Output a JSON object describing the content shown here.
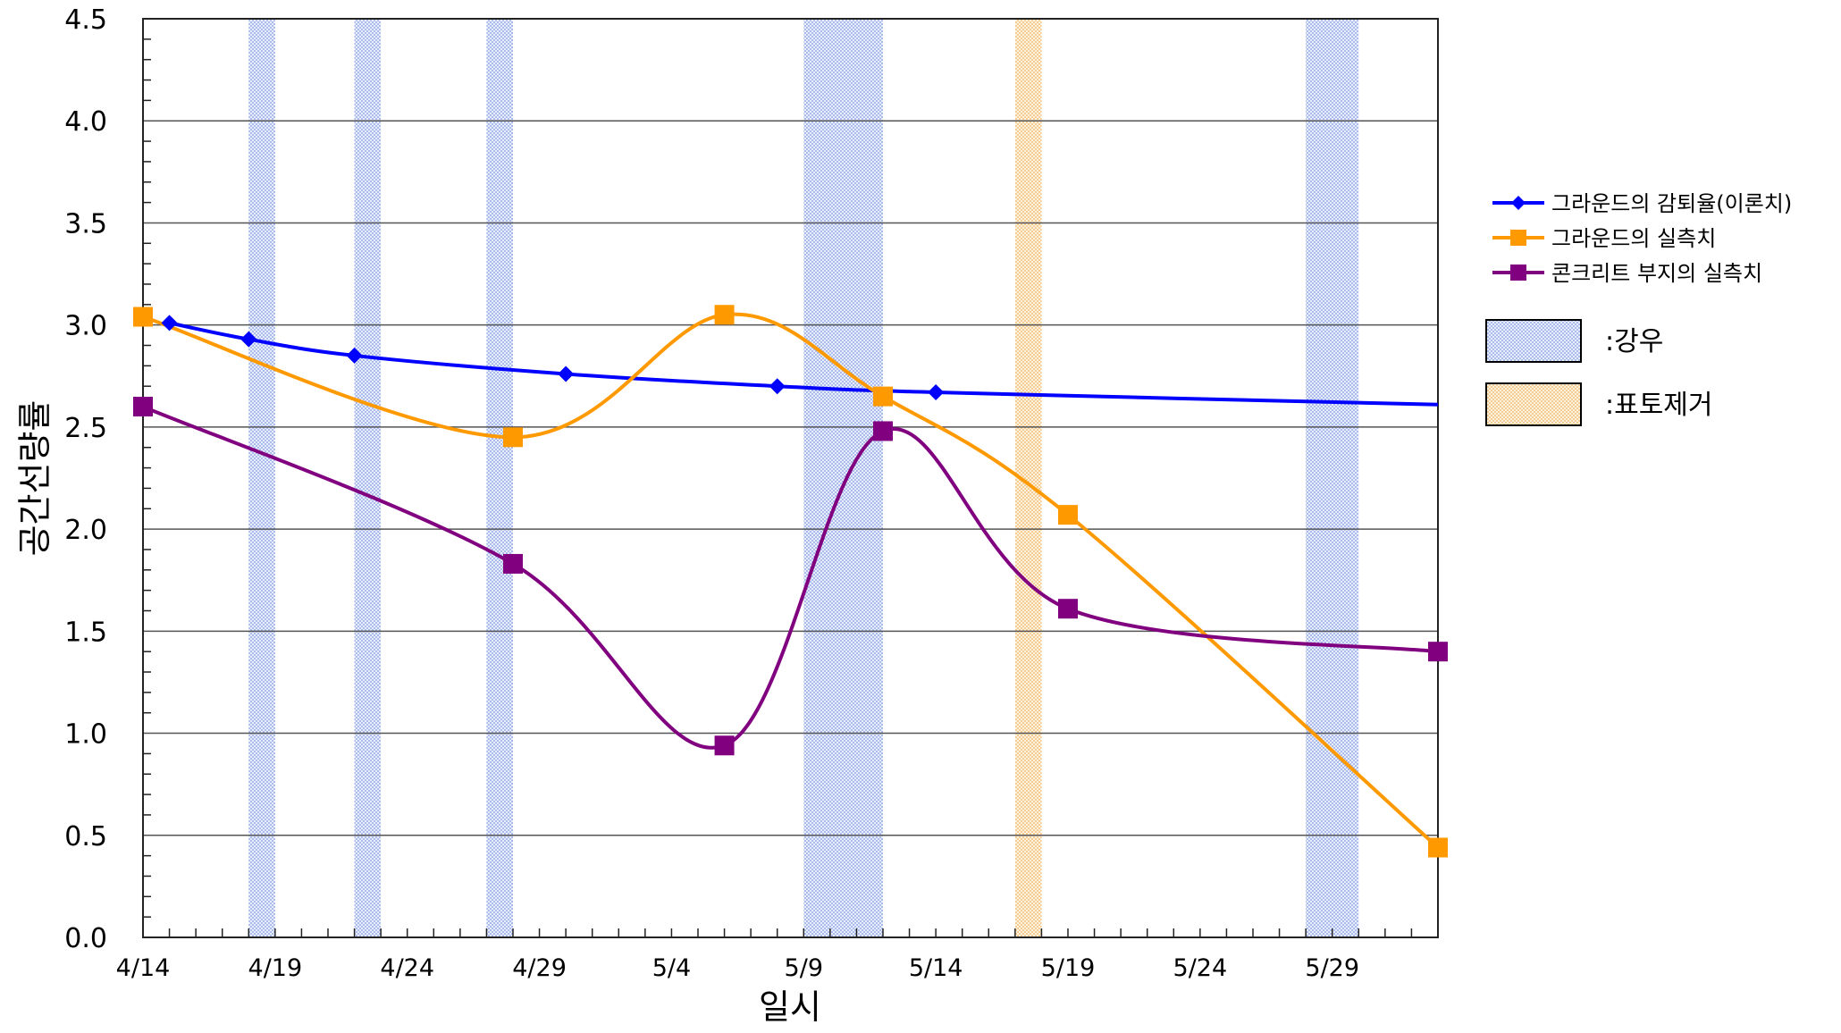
{
  "chart_data": {
    "type": "line",
    "xlabel": "일시",
    "ylabel": "공간선량률",
    "x_tick_labels": [
      "4/14",
      "4/19",
      "4/24",
      "4/29",
      "5/4",
      "5/9",
      "5/14",
      "5/19",
      "5/24",
      "5/29"
    ],
    "x_tick_dates": [
      "2012-04-14",
      "2012-04-19",
      "2012-04-24",
      "2012-04-29",
      "2012-05-04",
      "2012-05-09",
      "2012-05-14",
      "2012-05-19",
      "2012-05-24",
      "2012-05-29"
    ],
    "xlim": [
      "2012-04-14",
      "2012-06-02"
    ],
    "ylim": [
      0,
      4.5
    ],
    "y_tick_labels": [
      "0.0",
      "0.5",
      "1.0",
      "1.5",
      "2.0",
      "2.5",
      "3.0",
      "3.5",
      "4.0",
      "4.5"
    ],
    "y_ticks": [
      0,
      0.5,
      1.0,
      1.5,
      2.0,
      2.5,
      3.0,
      3.5,
      4.0,
      4.5
    ],
    "grid": "horizontal",
    "legend_position": "right",
    "series": [
      {
        "name": "그라운드의 감퇴율(이론치)",
        "color": "#0000ff",
        "marker": "diamond",
        "points": [
          {
            "x": "2012-04-15",
            "y": 3.01
          },
          {
            "x": "2012-04-18",
            "y": 2.93
          },
          {
            "x": "2012-04-22",
            "y": 2.85
          },
          {
            "x": "2012-04-30",
            "y": 2.76
          },
          {
            "x": "2012-05-08",
            "y": 2.7
          },
          {
            "x": "2012-05-14",
            "y": 2.67
          }
        ],
        "line_extends_to": {
          "x": "2012-06-02",
          "y": 2.61
        }
      },
      {
        "name": "그라운드의 실측치",
        "color": "#ff9900",
        "marker": "square",
        "points": [
          {
            "x": "2012-04-14",
            "y": 3.04
          },
          {
            "x": "2012-04-28",
            "y": 2.45
          },
          {
            "x": "2012-05-06",
            "y": 3.05
          },
          {
            "x": "2012-05-12",
            "y": 2.65
          },
          {
            "x": "2012-05-19",
            "y": 2.07
          },
          {
            "x": "2012-06-02",
            "y": 0.44
          }
        ]
      },
      {
        "name": "콘크리트 부지의 실측치",
        "color": "#800080",
        "marker": "square",
        "points": [
          {
            "x": "2012-04-14",
            "y": 2.6
          },
          {
            "x": "2012-04-28",
            "y": 1.83
          },
          {
            "x": "2012-05-06",
            "y": 0.94
          },
          {
            "x": "2012-05-12",
            "y": 2.48
          },
          {
            "x": "2012-05-19",
            "y": 1.61
          },
          {
            "x": "2012-06-02",
            "y": 1.4
          }
        ]
      }
    ],
    "bands": [
      {
        "kind": "rain",
        "label": ":강우",
        "color": "#aabbee",
        "start": "2012-04-18",
        "end": "2012-04-19"
      },
      {
        "kind": "rain",
        "label": ":강우",
        "color": "#aabbee",
        "start": "2012-04-22",
        "end": "2012-04-23"
      },
      {
        "kind": "rain",
        "label": ":강우",
        "color": "#aabbee",
        "start": "2012-04-27",
        "end": "2012-04-28"
      },
      {
        "kind": "rain",
        "label": ":강우",
        "color": "#aabbee",
        "start": "2012-05-09",
        "end": "2012-05-12"
      },
      {
        "kind": "topsoil",
        "label": ":표토제거",
        "color": "#ffcc77",
        "start": "2012-05-17",
        "end": "2012-05-18"
      },
      {
        "kind": "rain",
        "label": ":강우",
        "color": "#aabbee",
        "start": "2012-05-28",
        "end": "2012-05-30"
      }
    ],
    "band_legend": [
      {
        "kind": "rain",
        "label": ":강우"
      },
      {
        "kind": "topsoil",
        "label": ":표토제거"
      }
    ]
  }
}
